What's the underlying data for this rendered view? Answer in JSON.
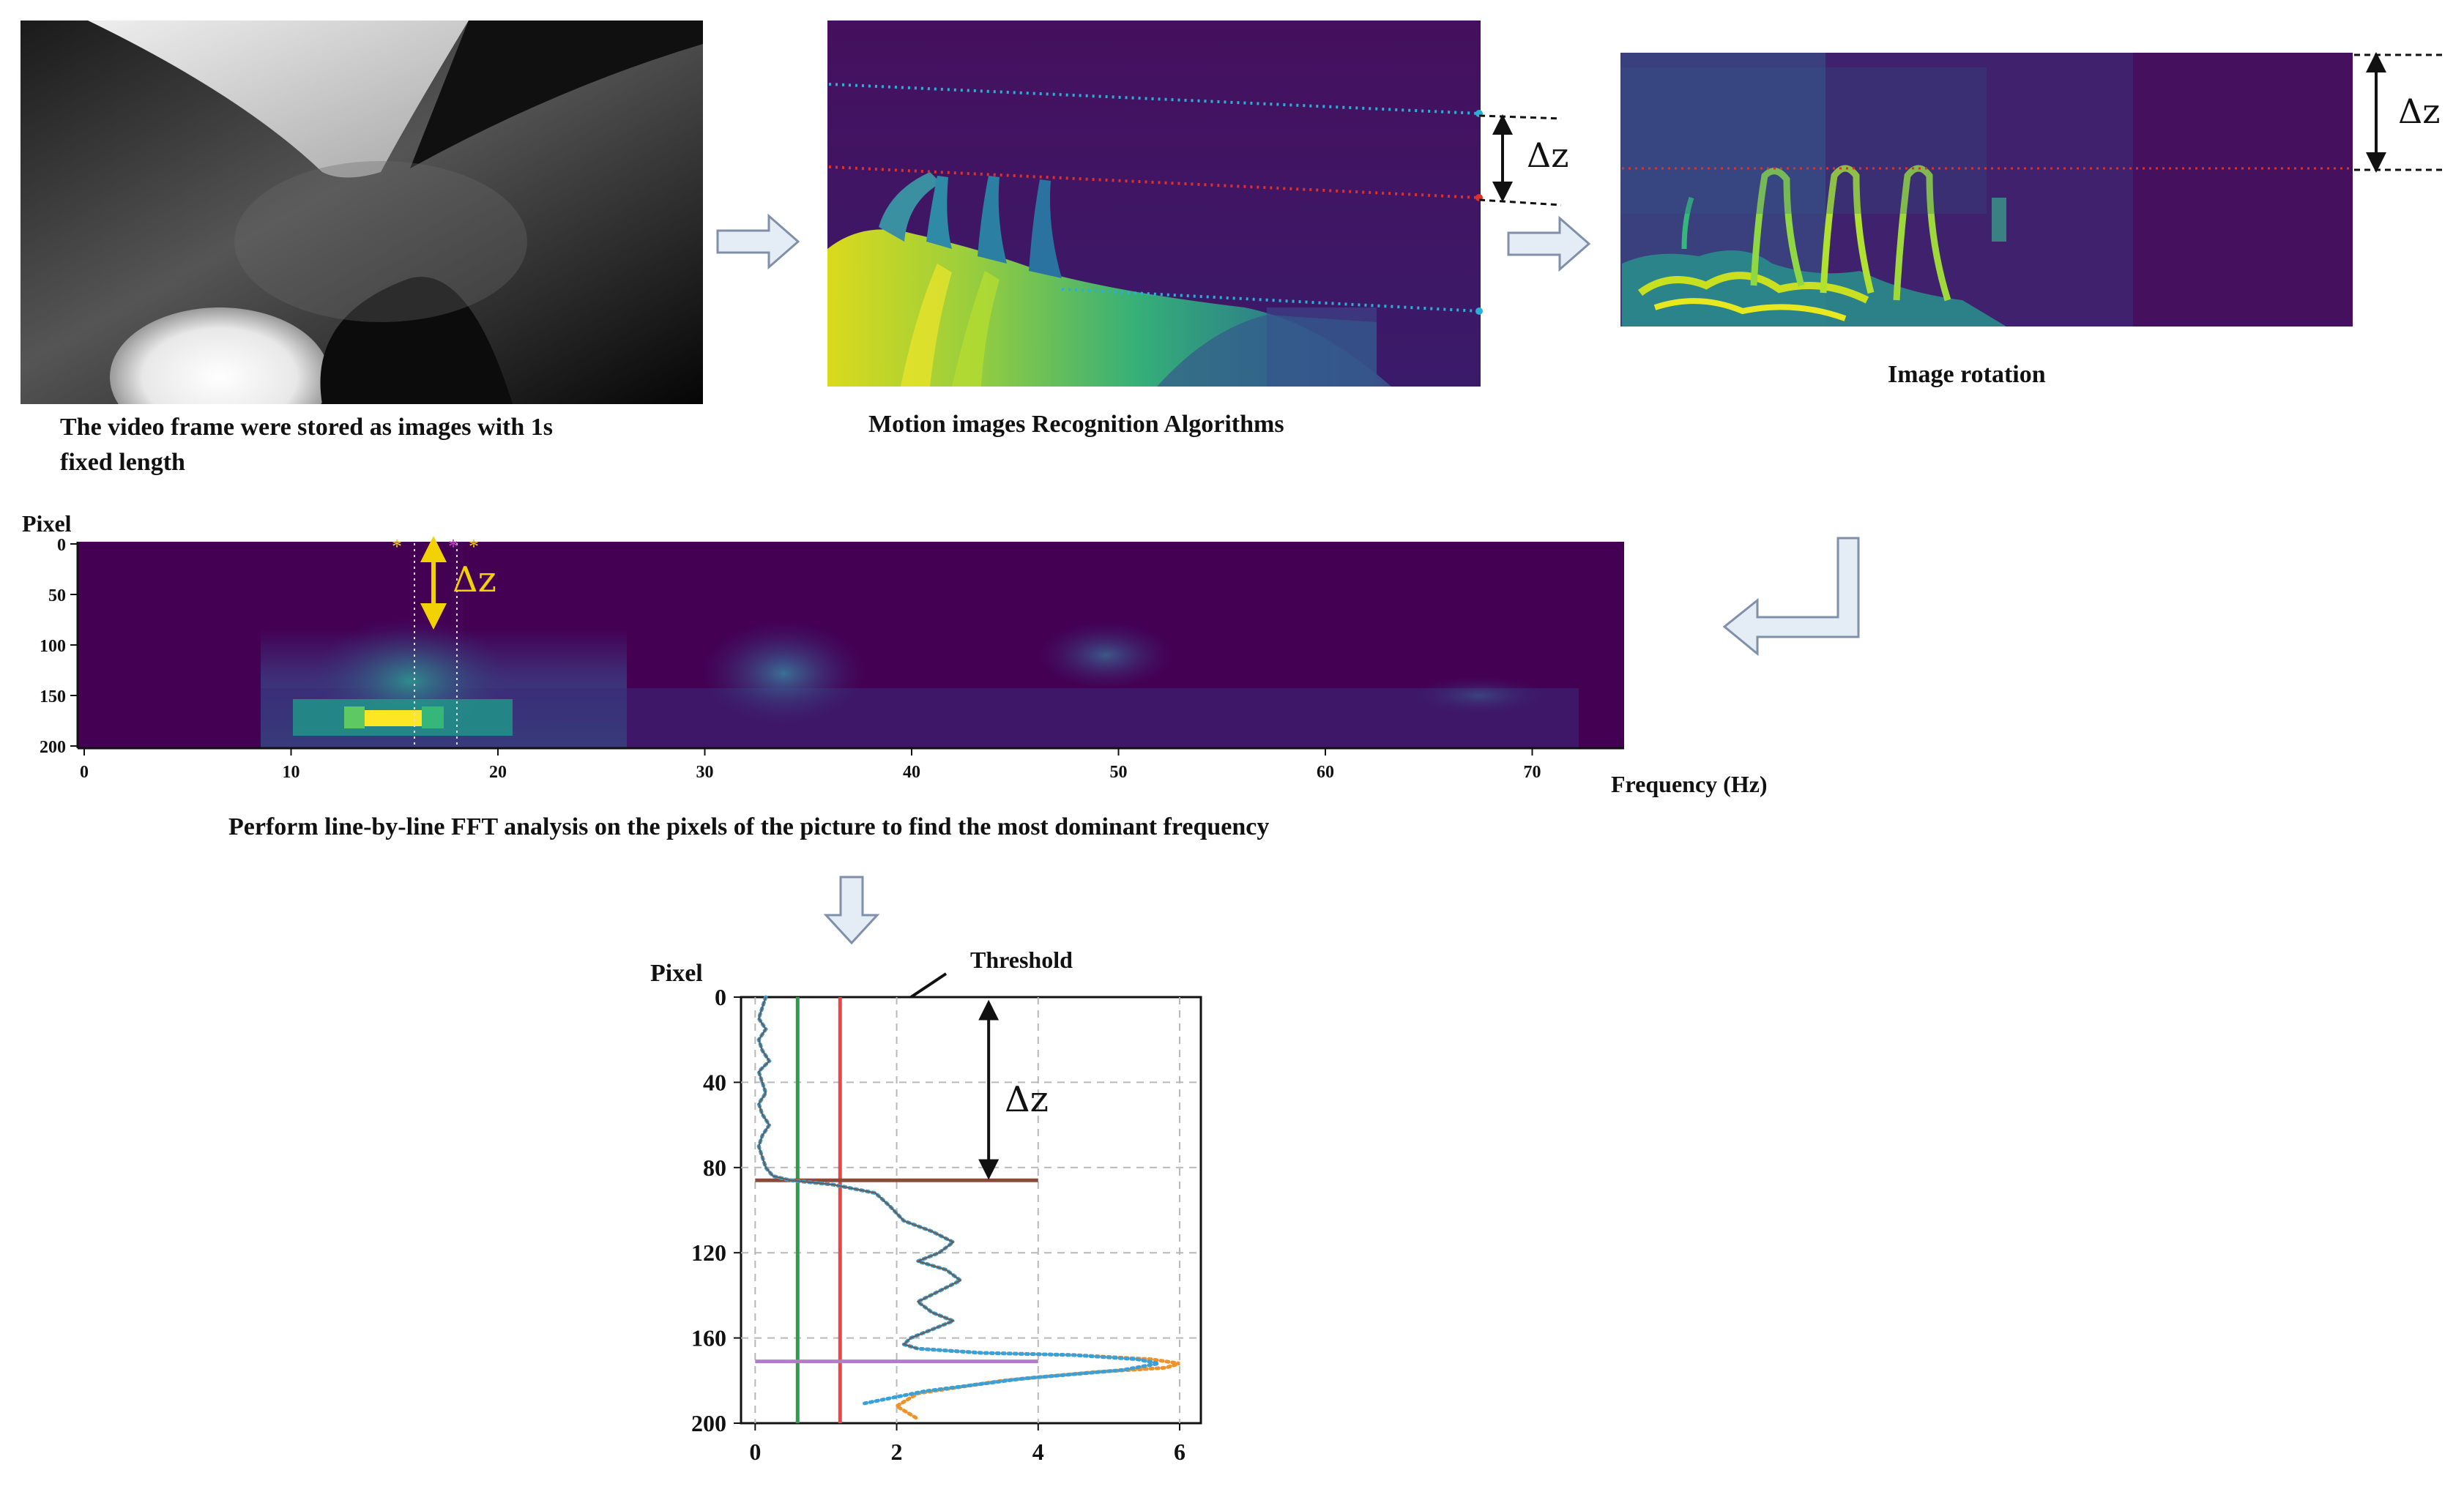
{
  "captions": {
    "video_frame": [
      "The video frame were stored as images with 1s",
      "fixed length"
    ],
    "motion": "Motion images Recognition Algorithms",
    "rotation": "Image rotation",
    "fft": "Perform line-by-line FFT analysis on the pixels of the picture to find the most dominant frequency"
  },
  "labels": {
    "delta_z": "Δz",
    "pixel": "Pixel",
    "frequency": "Frequency (Hz)",
    "threshold": "Threshold"
  },
  "colors": {
    "viridis_dark": "#440154",
    "viridis_purple": "#3b1f6e",
    "viridis_teal": "#21918c",
    "viridis_green": "#5ec962",
    "viridis_yellow": "#fde725",
    "dashed_cyan": "#2ab0d8",
    "dashed_red": "#e0302a",
    "delta_yellow": "#f2d200",
    "threshold_green": "#2e9d4a",
    "threshold_red": "#e8474a",
    "h_brown": "#8b4a3a",
    "h_violet": "#b07ec8",
    "curve_orange": "#f0922a",
    "curve_blue": "#3aa0d8"
  },
  "heatmap_axis": {
    "yticks": [
      "0",
      "50",
      "100",
      "150",
      "200"
    ],
    "xticks": [
      "0",
      "10",
      "20",
      "30",
      "40",
      "50",
      "60",
      "70"
    ]
  },
  "chart_data": {
    "type": "line",
    "title": "",
    "xlabel": "",
    "ylabel": "Pixel",
    "ylim": [
      200,
      0
    ],
    "xlim": [
      -0.2,
      6.3
    ],
    "yticks": [
      "0",
      "40",
      "80",
      "120",
      "160",
      "200"
    ],
    "xticks": [
      "0",
      "2",
      "4",
      "6"
    ],
    "thresholds": [
      0.6,
      1.2
    ],
    "hlines": [
      {
        "y": 86,
        "x_end": 4
      },
      {
        "y": 171,
        "x_end": 4
      }
    ],
    "delta_z_arrow": {
      "x": 3.3,
      "y_top": 4,
      "y_bottom": 83
    },
    "series": [
      {
        "style": "dotted-orange",
        "x": [
          0.15,
          0.1,
          0.05,
          0.15,
          0.05,
          0.1,
          0.2,
          0.05,
          0.1,
          0.15,
          0.05,
          0.1,
          0.2,
          0.1,
          0.05,
          0.1,
          0.15,
          0.25,
          0.5,
          1.1,
          1.7,
          1.9,
          2.1,
          2.5,
          2.8,
          2.6,
          2.3,
          2.7,
          2.9,
          2.6,
          2.3,
          2.5,
          2.8,
          2.5,
          2.2,
          2.1,
          2.3,
          3.2,
          4.5,
          5.6,
          6.0,
          5.8,
          4.8,
          3.5,
          2.3,
          2.0,
          2.3
        ],
        "y": [
          0,
          5,
          10,
          15,
          20,
          25,
          30,
          35,
          40,
          45,
          50,
          55,
          60,
          65,
          70,
          75,
          80,
          84,
          86,
          88,
          92,
          98,
          105,
          110,
          115,
          120,
          124,
          128,
          133,
          138,
          143,
          148,
          152,
          156,
          160,
          163,
          165,
          167,
          168,
          170,
          172,
          174,
          176,
          180,
          186,
          192,
          198
        ]
      },
      {
        "style": "dotted-blue",
        "x": [
          0.15,
          0.1,
          0.05,
          0.15,
          0.05,
          0.1,
          0.2,
          0.05,
          0.1,
          0.15,
          0.05,
          0.1,
          0.2,
          0.1,
          0.05,
          0.1,
          0.15,
          0.25,
          0.5,
          1.1,
          1.7,
          1.9,
          2.1,
          2.5,
          2.8,
          2.6,
          2.3,
          2.7,
          2.9,
          2.6,
          2.3,
          2.5,
          2.8,
          2.5,
          2.2,
          2.1,
          2.3,
          3.2,
          4.5,
          5.4,
          5.7,
          5.2,
          3.8,
          2.4,
          1.5
        ],
        "y": [
          0,
          5,
          10,
          15,
          20,
          25,
          30,
          35,
          40,
          45,
          50,
          55,
          60,
          65,
          70,
          75,
          80,
          84,
          86,
          88,
          92,
          98,
          105,
          110,
          115,
          120,
          124,
          128,
          133,
          138,
          143,
          148,
          152,
          156,
          160,
          163,
          165,
          167,
          168,
          170,
          172,
          175,
          179,
          185,
          191
        ]
      }
    ]
  }
}
